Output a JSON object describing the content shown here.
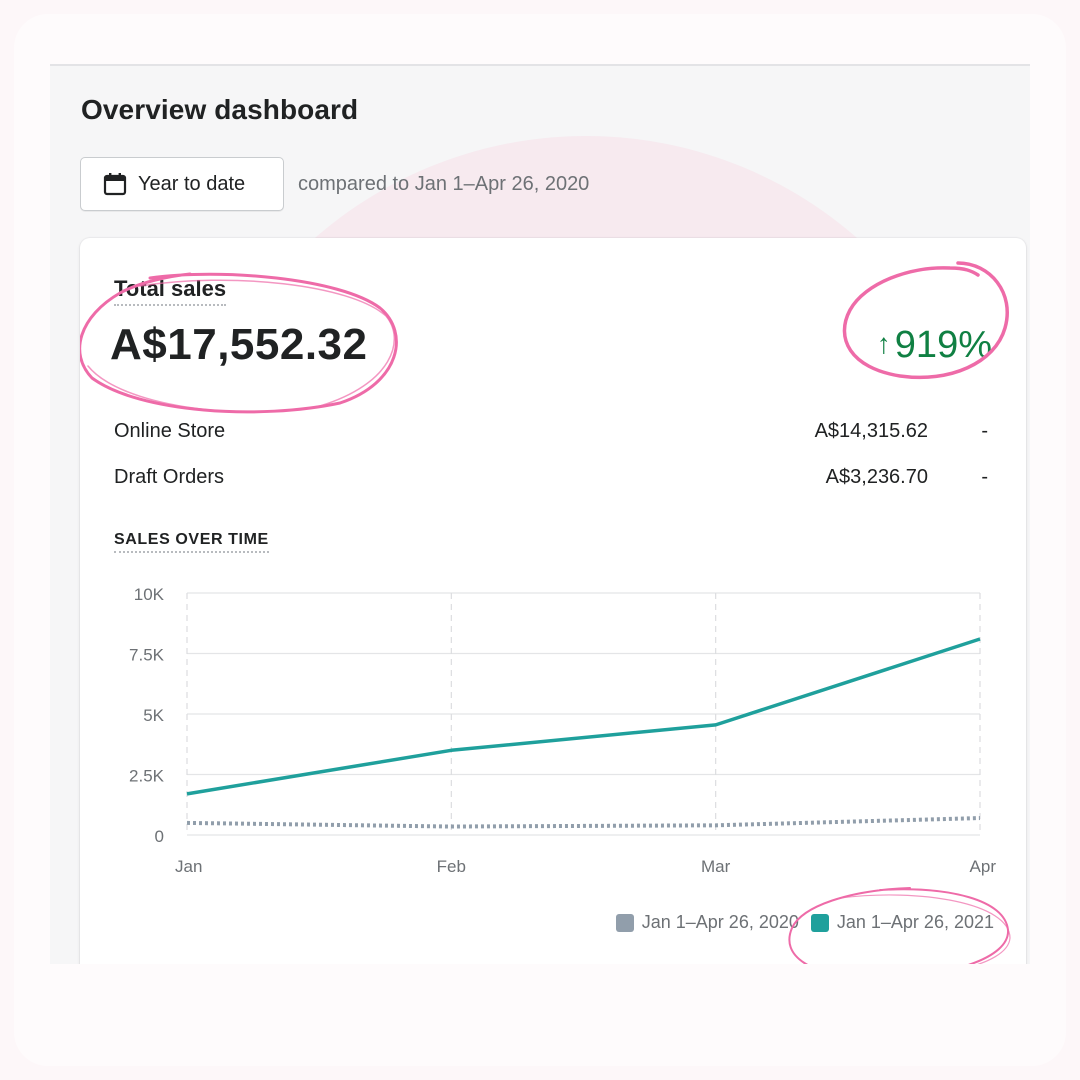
{
  "header": {
    "title": "Overview dashboard",
    "date_button_label": "Year to date",
    "date_icon": "calendar-icon",
    "compare_text": "compared to Jan 1–Apr 26, 2020"
  },
  "card": {
    "total_label": "Total sales",
    "total_value": "A$17,552.32",
    "change_arrow": "↑",
    "change_value": "919%",
    "rows": [
      {
        "label": "Online Store",
        "value": "A$14,315.62",
        "trend": "-"
      },
      {
        "label": "Draft Orders",
        "value": "A$3,236.70",
        "trend": "-"
      }
    ],
    "chart_title": "SALES OVER TIME"
  },
  "colors": {
    "current_series": "#1fa09c",
    "previous_series": "#919eab",
    "positive": "#108043",
    "highlight": "#ee6ba8"
  },
  "chart_data": {
    "type": "line",
    "title": "SALES OVER TIME",
    "categories": [
      "Jan",
      "Feb",
      "Mar",
      "Apr"
    ],
    "ylim": [
      0,
      10000
    ],
    "yticks": [
      0,
      2500,
      5000,
      7500,
      10000
    ],
    "ytick_labels": [
      "0",
      "2.5K",
      "5K",
      "7.5K",
      "10K"
    ],
    "grid": true,
    "legend_position": "bottom-right",
    "series": [
      {
        "name": "Jan 1–Apr 26, 2020",
        "style": "dotted",
        "values": [
          500,
          350,
          400,
          700
        ]
      },
      {
        "name": "Jan 1–Apr 26, 2021",
        "style": "solid",
        "values": [
          1700,
          3500,
          4550,
          8100
        ]
      }
    ]
  }
}
